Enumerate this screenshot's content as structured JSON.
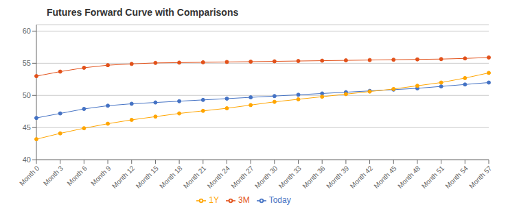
{
  "chart_data": {
    "type": "line",
    "title": "Futures Forward Curve with Comparisons",
    "categories": [
      "Month 0",
      "Month 3",
      "Month 6",
      "Month 9",
      "Month 12",
      "Month 15",
      "Month 18",
      "Month 21",
      "Month 24",
      "Month 27",
      "Month 30",
      "Month 33",
      "Month 36",
      "Month 39",
      "Month 42",
      "Month 45",
      "Month 48",
      "Month 51",
      "Month 54",
      "Month 57"
    ],
    "series": [
      {
        "name": "Today",
        "color": "#4472C4",
        "values": [
          46.5,
          47.2,
          47.9,
          48.4,
          48.7,
          48.9,
          49.1,
          49.3,
          49.5,
          49.7,
          49.9,
          50.1,
          50.3,
          50.5,
          50.7,
          50.9,
          51.1,
          51.4,
          51.7,
          52.0
        ]
      },
      {
        "name": "3M",
        "color": "#E2511A",
        "values": [
          53.0,
          53.7,
          54.3,
          54.7,
          54.9,
          55.05,
          55.1,
          55.15,
          55.2,
          55.25,
          55.3,
          55.35,
          55.4,
          55.45,
          55.5,
          55.55,
          55.6,
          55.65,
          55.75,
          55.9
        ]
      },
      {
        "name": "1Y",
        "color": "#FFA500",
        "values": [
          43.2,
          44.1,
          44.9,
          45.6,
          46.2,
          46.7,
          47.2,
          47.6,
          48.0,
          48.5,
          49.0,
          49.4,
          49.8,
          50.2,
          50.6,
          51.0,
          51.5,
          52.0,
          52.7,
          53.5
        ]
      }
    ],
    "ylim": [
      40,
      61
    ],
    "yticks": [
      40,
      45,
      50,
      55,
      60
    ],
    "grid": true,
    "legend": "bottom",
    "marker": "circle"
  }
}
